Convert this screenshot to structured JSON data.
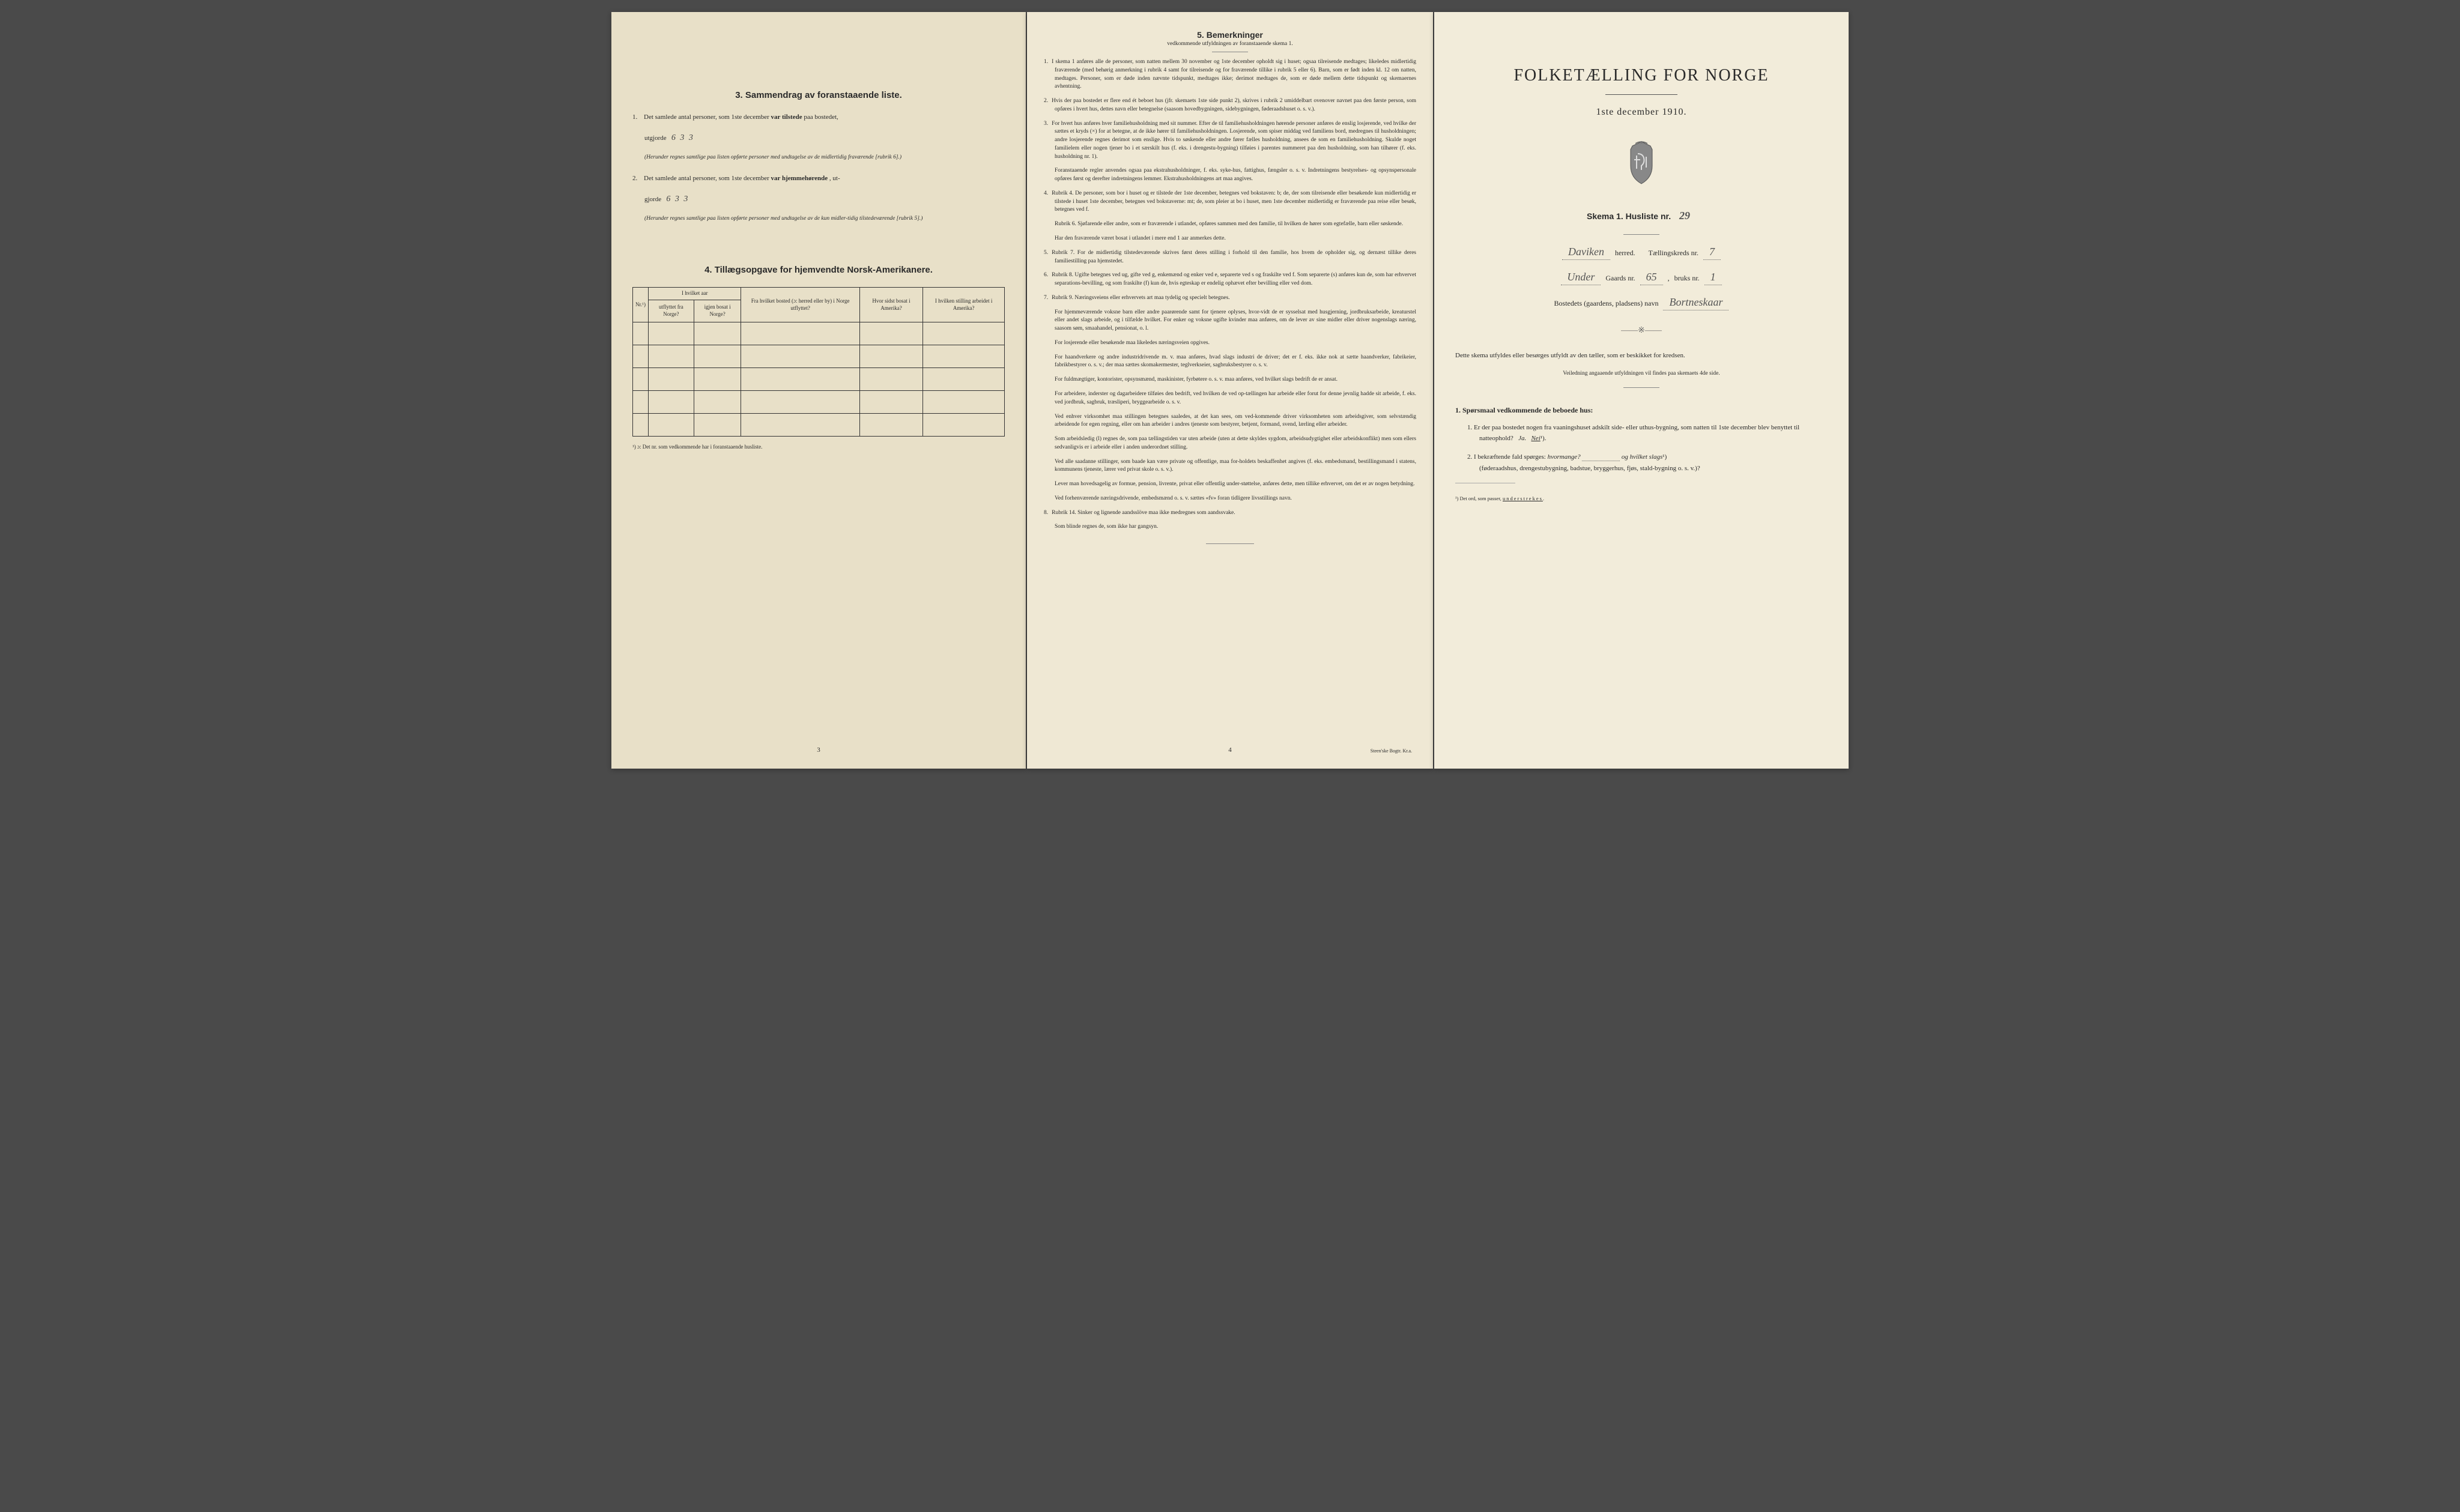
{
  "page3": {
    "section3_title": "3.   Sammendrag av foranstaaende liste.",
    "item1_prefix": "1.",
    "item1_text": "Det samlede antal personer, som 1ste december",
    "item1_bold": "var tilstede",
    "item1_suffix": "paa bostedet,",
    "item1_line2": "utgjorde",
    "item1_handwritten": "6 3 3",
    "item1_note": "(Herunder regnes samtlige paa listen opførte personer med undtagelse av de midlertidig fraværende [rubrik 6].)",
    "item2_prefix": "2.",
    "item2_text": "Det samlede antal personer, som 1ste december",
    "item2_bold": "var hjemmehørende",
    "item2_suffix": ", ut-",
    "item2_line2": "gjorde",
    "item2_handwritten": "6 3 3",
    "item2_note": "(Herunder regnes samtlige paa listen opførte personer med undtagelse av de kun midler-tidig tilstedeværende [rubrik 5].)",
    "section4_title": "4.   Tillægsopgave for hjemvendte Norsk-Amerikanere.",
    "table": {
      "col1": "Nr.¹)",
      "col2_header": "I hvilket aar",
      "col2a": "utflyttet fra Norge?",
      "col2b": "igjen bosat i Norge?",
      "col3": "Fra hvilket bosted (ɔ: herred eller by) i Norge utflyttet?",
      "col4": "Hvor sidst bosat i Amerika?",
      "col5": "I hvilken stilling arbeidet i Amerika?"
    },
    "footnote": "¹) ɔ: Det nr. som vedkommende har i foranstaaende husliste.",
    "page_num": "3"
  },
  "page4": {
    "title": "5.   Bemerkninger",
    "subtitle": "vedkommende utfyldningen av foranstaaende skema 1.",
    "items": [
      {
        "n": "1.",
        "text": "I skema 1 anføres alle de personer, som natten mellem 30 november og 1ste december opholdt sig i huset; ogsaa tilreisende medtages; likeledes midlertidig fraværende (med behørig anmerkning i rubrik 4 samt for tilreisende og for fraværende tillike i rubrik 5 eller 6). Barn, som er født inden kl. 12 om natten, medtages. Personer, som er døde inden nævnte tidspunkt, medtages ikke; derimot medtages de, som er døde mellem dette tidspunkt og skemaernes avhentning."
      },
      {
        "n": "2.",
        "text": "Hvis der paa bostedet er flere end ét beboet hus (jfr. skemaets 1ste side punkt 2), skrives i rubrik 2 umiddelbart ovenover navnet paa den første person, som opføres i hvert hus, dettes navn eller betegnelse (saasom hovedbygningen, sidebygningen, føderaadshuset o. s. v.)."
      },
      {
        "n": "3.",
        "text": "For hvert hus anføres hver familiehusholdning med sit nummer. Efter de til familiehusholdningen hørende personer anføres de enslig losjerende, ved hvilke der sættes et kryds (×) for at betegne, at de ikke hører til familiehusholdningen. Losjerende, som spiser middag ved familiens bord, medregnes til husholdningen; andre losjerende regnes derimot som enslige. Hvis to søskende eller andre fører fælles husholdning, ansees de som en familiehusholdning. Skulde noget familielem eller nogen tjener bo i et særskilt hus (f. eks. i drengestu-bygning) tilføies i parentes nummeret paa den husholdning, som han tilhører (f. eks. husholdning nr. 1).",
        "sub": "Foranstaaende regler anvendes ogsaa paa ekstrahusholdninger, f. eks. syke-hus, fattighus, fængsler o. s. v. Indretningens bestyrelses- og opsynspersonale opføres først og derefter indretningens lemmer. Ekstrahusholdningens art maa angives."
      },
      {
        "n": "4.",
        "text": "Rubrik 4. De personer, som bor i huset og er tilstede der 1ste december, betegnes ved bokstaven: b; de, der som tilreisende eller besøkende kun midlertidig er tilstede i huset 1ste december, betegnes ved bokstaverne: mt; de, som pleier at bo i huset, men 1ste december midlertidig er fraværende paa reise eller besøk, betegnes ved f.",
        "sub": "Rubrik 6. Sjøfarende eller andre, som er fraværende i utlandet, opføres sammen med den familie, til hvilken de hører som egtefælle, barn eller søskende.",
        "sub2": "Har den fraværende været bosat i utlandet i mere end 1 aar anmerkes dette."
      },
      {
        "n": "5.",
        "text": "Rubrik 7. For de midlertidig tilstedeværende skrives først deres stilling i forhold til den familie, hos hvem de opholder sig, og dernæst tillike deres familiestilling paa hjemstedet."
      },
      {
        "n": "6.",
        "text": "Rubrik 8. Ugifte betegnes ved ug, gifte ved g, enkemænd og enker ved e, separerte ved s og fraskilte ved f. Som separerte (s) anføres kun de, som har erhvervet separations-bevilling, og som fraskilte (f) kun de, hvis egteskap er endelig ophævet efter bevilling eller ved dom."
      },
      {
        "n": "7.",
        "text": "Rubrik 9. Næringsveiens eller erhvervets art maa tydelig og specielt betegnes.",
        "sub": "For hjemmeværende voksne barn eller andre paarørende samt for tjenere oplyses, hvor-vidt de er sysselsat med husgjerning, jordbruksarbeide, kreaturstel eller andet slags arbeide, og i tilfælde hvilket. For enker og voksne ugifte kvinder maa anføres, om de lever av sine midler eller driver nogenslags næring, saasom søm, smaahandel, pensionat, o. l.",
        "sub2": "For losjerende eller besøkende maa likeledes næringsveien opgives.",
        "sub3": "For haandverkere og andre industridrivende m. v. maa anføres, hvad slags industri de driver; det er f. eks. ikke nok at sætte haandverker, fabrikeier, fabrikbestyrer o. s. v.; der maa sættes skomakermester, teglverkseier, sagbruksbestyrer o. s. v.",
        "sub4": "For fuldmægtiger, kontorister, opsynsmænd, maskinister, fyrbøtere o. s. v. maa anføres, ved hvilket slags bedrift de er ansat.",
        "sub5": "For arbeidere, inderster og dagarbeidere tilføies den bedrift, ved hvilken de ved op-tællingen har arbeide eller forut for denne jevnlig hadde sit arbeide, f. eks. ved jordbruk, sagbruk, træsliperi, bryggearbeide o. s. v.",
        "sub6": "Ved enhver virksomhet maa stillingen betegnes saaledes, at det kan sees, om ved-kommende driver virksomheten som arbeidsgiver, som selvstændig arbeidende for egen regning, eller om han arbeider i andres tjeneste som bestyrer, betjent, formand, svend, lærling eller arbeider.",
        "sub7": "Som arbeidsledig (l) regnes de, som paa tællingstiden var uten arbeide (uten at dette skyldes sygdom, arbeidsudygtighet eller arbeidskonflikt) men som ellers sedvanligvis er i arbeide eller i anden underordnet stilling.",
        "sub8": "Ved alle saadanne stillinger, som baade kan være private og offentlige, maa for-holdets beskaffenhet angives (f. eks. embedsmand, bestillingsmand i statens, kommunens tjeneste, lærer ved privat skole o. s. v.).",
        "sub9": "Lever man hovedsagelig av formue, pension, livrente, privat eller offentlig under-støttelse, anføres dette, men tillike erhvervet, om det er av nogen betydning.",
        "sub10": "Ved forhenværende næringsdrivende, embedsmænd o. s. v. sættes «fv» foran tidligere livsstillings navn."
      },
      {
        "n": "8.",
        "text": "Rubrik 14. Sinker og lignende aandsslöve maa ikke medregnes som aandssvake.",
        "sub": "Som blinde regnes de, som ikke har gangsyn."
      }
    ],
    "page_num": "4",
    "printer": "Steen'ske Bogtr. Kr.a."
  },
  "page1": {
    "main_title": "FOLKETÆLLING FOR NORGE",
    "date": "1ste december 1910.",
    "skema_label": "Skema 1.   Husliste nr.",
    "husliste_nr": "29",
    "herred_value": "Daviken",
    "herred_label": "herred.",
    "kreds_label": "Tællingskreds nr.",
    "kreds_nr": "7",
    "under_value": "Under",
    "gaards_label": "Gaards nr.",
    "gaards_nr": "65",
    "bruks_label": "bruks nr.",
    "bruks_nr": "1",
    "bosted_label": "Bostedets (gaardens, pladsens) navn",
    "bosted_value": "Bortneskaar",
    "instruction": "Dette skema utfyldes eller besørges utfyldt av den tæller, som er beskikket for kredsen.",
    "instruction_sub": "Veiledning angaaende utfyldningen vil findes paa skemaets 4de side.",
    "q_header": "1.",
    "q_header_text": "Spørsmaal vedkommende de beboede hus:",
    "q1_n": "1.",
    "q1_text": "Er der paa bostedet nogen fra vaaningshuset adskilt side- eller uthus-bygning, som natten til 1ste december blev benyttet til natteophold?",
    "q1_ja": "Ja.",
    "q1_nei": "Nei",
    "q1_sup": "¹).",
    "q2_n": "2.",
    "q2_text": "I bekræftende fald spørges:",
    "q2_italic1": "hvormange?",
    "q2_og": "og",
    "q2_italic2": "hvilket slags",
    "q2_sup": "¹)",
    "q2_paren": "(føderaadshus, drengestubygning, badstue, bryggerhus, fjøs, stald-bygning o. s. v.)?",
    "footnote": "¹) Det ord, som passer,",
    "footnote_underlined": "understrekes"
  }
}
